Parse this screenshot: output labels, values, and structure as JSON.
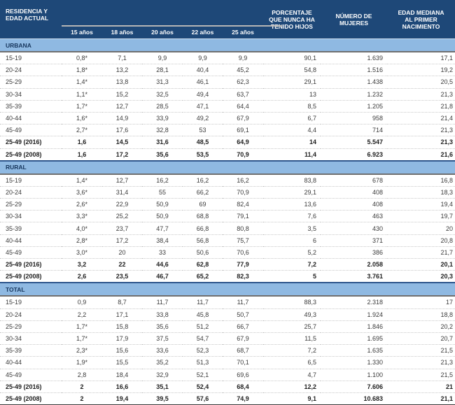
{
  "table": {
    "residence_header": "RESIDENCIA Y\nEDAD ACTUAL",
    "age_headers": [
      "15 años",
      "18 años",
      "20 años",
      "22 años",
      "25 años"
    ],
    "pct_header": "PORCENTAJE\nQUE NUNCA HA\nTENIDO HIJOS",
    "women_header": "NÚMERO DE\nMUJERES",
    "median_header": "EDAD MEDIANA\nAL PRIMER\nNACIMIENTO",
    "sections": [
      {
        "title": "URBANA",
        "rows": [
          {
            "label": "15-19",
            "bold": false,
            "values": [
              "0,8*",
              "7,1",
              "9,9",
              "9,9",
              "9,9",
              "90,1",
              "1.639",
              "17,1"
            ]
          },
          {
            "label": "20-24",
            "bold": false,
            "values": [
              "1,8*",
              "13,2",
              "28,1",
              "40,4",
              "45,2",
              "54,8",
              "1.516",
              "19,2"
            ]
          },
          {
            "label": "25-29",
            "bold": false,
            "values": [
              "1,4*",
              "13,8",
              "31,3",
              "46,1",
              "62,3",
              "29,1",
              "1.438",
              "20,5"
            ]
          },
          {
            "label": "30-34",
            "bold": false,
            "values": [
              "1,1*",
              "15,2",
              "32,5",
              "49,4",
              "63,7",
              "13",
              "1.232",
              "21,3"
            ]
          },
          {
            "label": "35-39",
            "bold": false,
            "values": [
              "1,7*",
              "12,7",
              "28,5",
              "47,1",
              "64,4",
              "8,5",
              "1.205",
              "21,8"
            ]
          },
          {
            "label": "40-44",
            "bold": false,
            "values": [
              "1,6*",
              "14,9",
              "33,9",
              "49,2",
              "67,9",
              "6,7",
              "958",
              "21,4"
            ]
          },
          {
            "label": "45-49",
            "bold": false,
            "values": [
              "2,7*",
              "17,6",
              "32,8",
              "53",
              "69,1",
              "4,4",
              "714",
              "21,3"
            ]
          },
          {
            "label": "25-49 (2016)",
            "bold": true,
            "values": [
              "1,6",
              "14,5",
              "31,6",
              "48,5",
              "64,9",
              "14",
              "5.547",
              "21,3"
            ]
          },
          {
            "label": "25-49 (2008)",
            "bold": true,
            "values": [
              "1,6",
              "17,2",
              "35,6",
              "53,5",
              "70,9",
              "11,4",
              "6.923",
              "21,6"
            ]
          }
        ]
      },
      {
        "title": "RURAL",
        "rows": [
          {
            "label": "15-19",
            "bold": false,
            "values": [
              "1,4*",
              "12,7",
              "16,2",
              "16,2",
              "16,2",
              "83,8",
              "678",
              "16,8"
            ]
          },
          {
            "label": "20-24",
            "bold": false,
            "values": [
              "3,6*",
              "31,4",
              "55",
              "66,2",
              "70,9",
              "29,1",
              "408",
              "18,3"
            ]
          },
          {
            "label": "25-29",
            "bold": false,
            "values": [
              "2,6*",
              "22,9",
              "50,9",
              "69",
              "82,4",
              "13,6",
              "408",
              "19,4"
            ]
          },
          {
            "label": "30-34",
            "bold": false,
            "values": [
              "3,3*",
              "25,2",
              "50,9",
              "68,8",
              "79,1",
              "7,6",
              "463",
              "19,7"
            ]
          },
          {
            "label": "35-39",
            "bold": false,
            "values": [
              "4,0*",
              "23,7",
              "47,7",
              "66,8",
              "80,8",
              "3,5",
              "430",
              "20"
            ]
          },
          {
            "label": "40-44",
            "bold": false,
            "values": [
              "2,8*",
              "17,2",
              "38,4",
              "56,8",
              "75,7",
              "6",
              "371",
              "20,8"
            ]
          },
          {
            "label": "45-49",
            "bold": false,
            "values": [
              "3,0*",
              "20",
              "33",
              "50,6",
              "70,6",
              "5,2",
              "386",
              "21,7"
            ]
          },
          {
            "label": "25-49 (2016)",
            "bold": true,
            "values": [
              "3,2",
              "22",
              "44,6",
              "62,8",
              "77,9",
              "7,2",
              "2.058",
              "20,1"
            ]
          },
          {
            "label": "25-49 (2008)",
            "bold": true,
            "values": [
              "2,6",
              "23,5",
              "46,7",
              "65,2",
              "82,3",
              "5",
              "3.761",
              "20,3"
            ]
          }
        ]
      },
      {
        "title": "TOTAL",
        "rows": [
          {
            "label": "15-19",
            "bold": false,
            "values": [
              "0,9",
              "8,7",
              "11,7",
              "11,7",
              "11,7",
              "88,3",
              "2.318",
              "17"
            ]
          },
          {
            "label": "20-24",
            "bold": false,
            "values": [
              "2,2",
              "17,1",
              "33,8",
              "45,8",
              "50,7",
              "49,3",
              "1.924",
              "18,8"
            ]
          },
          {
            "label": "25-29",
            "bold": false,
            "values": [
              "1,7*",
              "15,8",
              "35,6",
              "51,2",
              "66,7",
              "25,7",
              "1.846",
              "20,2"
            ]
          },
          {
            "label": "30-34",
            "bold": false,
            "values": [
              "1,7*",
              "17,9",
              "37,5",
              "54,7",
              "67,9",
              "11,5",
              "1.695",
              "20,7"
            ]
          },
          {
            "label": "35-39",
            "bold": false,
            "values": [
              "2,3*",
              "15,6",
              "33,6",
              "52,3",
              "68,7",
              "7,2",
              "1.635",
              "21,5"
            ]
          },
          {
            "label": "40-44",
            "bold": false,
            "values": [
              "1,9*",
              "15,5",
              "35,2",
              "51,3",
              "70,1",
              "6,5",
              "1.330",
              "21,3"
            ]
          },
          {
            "label": "45-49",
            "bold": false,
            "values": [
              "2,8",
              "18,4",
              "32,9",
              "52,1",
              "69,6",
              "4,7",
              "1.100",
              "21,5"
            ]
          },
          {
            "label": "25-49 (2016)",
            "bold": true,
            "values": [
              "2",
              "16,6",
              "35,1",
              "52,4",
              "68,4",
              "12,2",
              "7.606",
              "21"
            ]
          },
          {
            "label": "25-49 (2008)",
            "bold": true,
            "values": [
              "2",
              "19,4",
              "39,5",
              "57,6",
              "74,9",
              "9,1",
              "10.683",
              "21,1"
            ]
          }
        ]
      }
    ]
  },
  "colors": {
    "header_bg": "#1E4878",
    "header_text": "#FFFFFF",
    "band_bg": "#8FB9E2",
    "band_text": "#17365D",
    "age_group_rule": "#B5B5B5",
    "band_top_border": "#2E568C",
    "band_bottom_border": "#707070",
    "row_separator": "#C9C9C9",
    "bottom_rule": "#3A3A3A"
  }
}
